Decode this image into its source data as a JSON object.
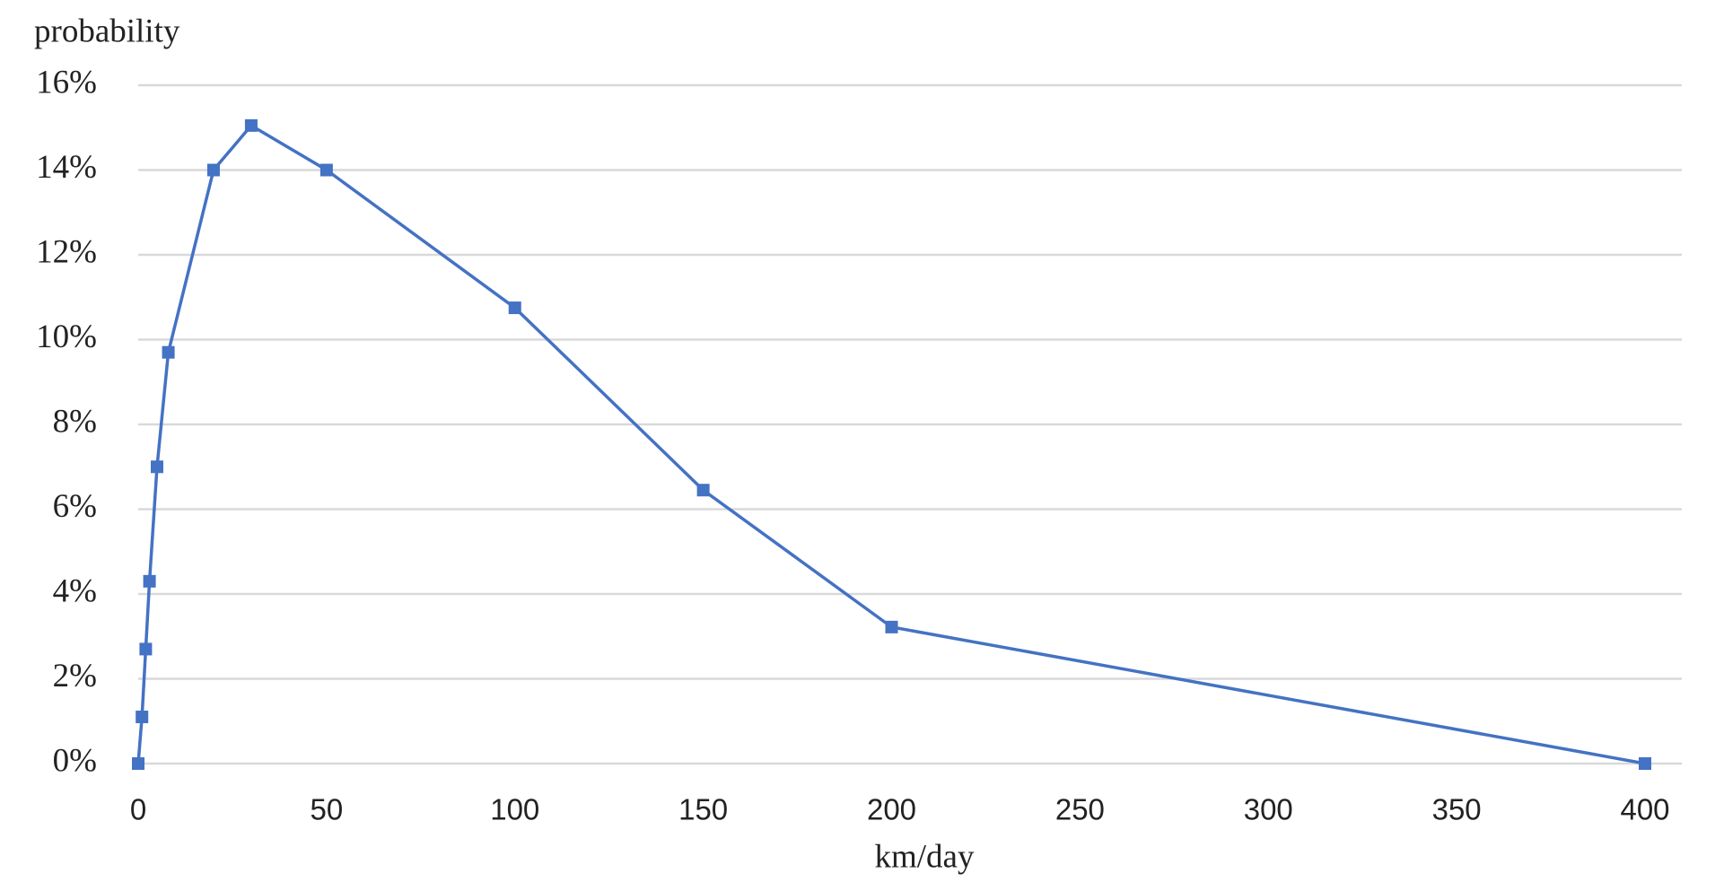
{
  "chart_data": {
    "type": "line",
    "y_axis_label": "probability",
    "x_axis_label": "km/day",
    "x": [
      0,
      1,
      2,
      3,
      5,
      8,
      20,
      30,
      50,
      100,
      150,
      200,
      400
    ],
    "series": [
      {
        "color": "#4472c4",
        "values": [
          0,
          1.1,
          2.7,
          4.3,
          7.0,
          9.7,
          14.0,
          15.05,
          14.0,
          10.75,
          6.45,
          3.22,
          0
        ]
      }
    ],
    "xlim": [
      0,
      400
    ],
    "xticks": [
      0,
      50,
      100,
      150,
      200,
      250,
      300,
      350,
      400
    ],
    "ylim": [
      0,
      16
    ],
    "yticks": [
      {
        "value": 0,
        "label": "0%"
      },
      {
        "value": 2,
        "label": "2%"
      },
      {
        "value": 4,
        "label": "4%"
      },
      {
        "value": 6,
        "label": "6%"
      },
      {
        "value": 8,
        "label": "8%"
      },
      {
        "value": 10,
        "label": "10%"
      },
      {
        "value": 12,
        "label": "12%"
      },
      {
        "value": 14,
        "label": "14%"
      },
      {
        "value": 16,
        "label": "16%"
      }
    ],
    "grid": true
  }
}
